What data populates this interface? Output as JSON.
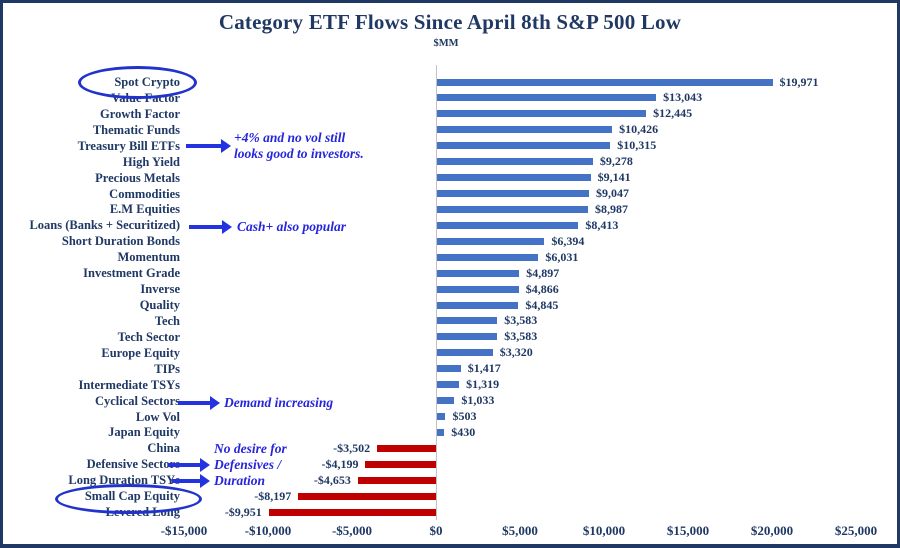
{
  "title": "Category ETF Flows Since April 8th S&P 500 Low",
  "units_label": "$MM",
  "colors": {
    "positive_bar": "#4472C4",
    "negative_bar": "#C00000",
    "text_navy": "#1F3864",
    "annotation_blue": "#2525DB",
    "arrow_blue": "#2333E0",
    "ellipse_blue": "#2233CC",
    "zero_axis_line": "#C3C3C3",
    "frame_border": "#1F3864"
  },
  "chart_data": {
    "type": "bar",
    "orientation": "horizontal",
    "title": "Category ETF Flows Since April 8th S&P 500 Low",
    "subtitle": "$MM",
    "xlabel": "",
    "ylabel": "",
    "xlim": [
      -15000,
      25000
    ],
    "grid": "zero-line-only",
    "categories": [
      "Spot Crypto",
      "Value Factor",
      "Growth Factor",
      "Thematic Funds",
      "Treasury Bill ETFs",
      "High Yield",
      "Precious Metals",
      "Commodities",
      "E.M Equities",
      "Loans (Banks + Securitized)",
      "Short Duration Bonds",
      "Momentum",
      "Investment Grade",
      "Inverse",
      "Quality",
      "Tech",
      "Tech Sector",
      "Europe Equity",
      "TIPs",
      "Intermediate TSYs",
      "Cyclical Sectors",
      "Low Vol",
      "Japan Equity",
      "China",
      "Defensive Sectors",
      "Long Duration TSYs",
      "Small Cap Equity",
      "Levered Long"
    ],
    "values": [
      19971,
      13043,
      12445,
      10426,
      10315,
      9278,
      9141,
      9047,
      8987,
      8413,
      6394,
      6031,
      4897,
      4866,
      4845,
      3583,
      3583,
      3320,
      1417,
      1319,
      1033,
      503,
      430,
      -3502,
      -4199,
      -4653,
      -8197,
      -9951
    ],
    "value_labels": [
      "$19,971",
      "$13,043",
      "$12,445",
      "$10,426",
      "$10,315",
      "$9,278",
      "$9,141",
      "$9,047",
      "$8,987",
      "$8,413",
      "$6,394",
      "$6,031",
      "$4,897",
      "$4,866",
      "$4,845",
      "$3,583",
      "$3,583",
      "$3,320",
      "$1,417",
      "$1,319",
      "$1,033",
      "$503",
      "$430",
      "-$3,502",
      "-$4,199",
      "-$4,653",
      "-$8,197",
      "-$9,951"
    ],
    "x_tick_values": [
      -15000,
      -10000,
      -5000,
      0,
      5000,
      10000,
      15000,
      20000,
      25000
    ],
    "x_tick_labels": [
      "-$15,000",
      "-$10,000",
      "-$5,000",
      "$0",
      "$5,000",
      "$10,000",
      "$15,000",
      "$20,000",
      "$25,000"
    ],
    "annotations": [
      {
        "target": "Treasury Bill ETFs",
        "lines": [
          "+4% and no vol still",
          "looks good to investors."
        ]
      },
      {
        "target": "Loans (Banks + Securitized)",
        "lines": [
          "Cash+ also popular"
        ]
      },
      {
        "target": "Cyclical Sectors",
        "lines": [
          "Demand increasing"
        ]
      },
      {
        "target": "Defensive Sectors / Long Duration TSYs",
        "lines": [
          "No desire for",
          "Defensives /",
          "Duration"
        ]
      }
    ],
    "highlighted_categories": [
      "Spot Crypto",
      "Small Cap Equity"
    ]
  }
}
